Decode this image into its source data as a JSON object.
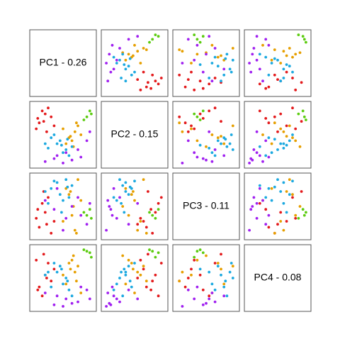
{
  "chart_data": {
    "type": "scatter_matrix",
    "labels": [
      "PC1 - 0.26",
      "PC2 - 0.15",
      "PC3 - 0.11",
      "PC4 - 0.08"
    ],
    "xlim": [
      -1,
      1
    ],
    "ylim": [
      -1,
      1
    ],
    "series": [
      {
        "color": "#e31a1c",
        "values": [
          [
            -0.6,
            0.7,
            -0.2,
            0.1
          ],
          [
            -0.8,
            0.4,
            -0.7,
            -0.3
          ],
          [
            -0.5,
            0.9,
            0.3,
            0.5
          ],
          [
            -0.9,
            0.2,
            -0.4,
            0.6
          ],
          [
            -0.4,
            0.6,
            -0.9,
            -0.1
          ],
          [
            -0.7,
            0.8,
            0.1,
            -0.6
          ],
          [
            -0.3,
            0.3,
            -0.5,
            0.3
          ],
          [
            -0.85,
            0.55,
            -0.1,
            -0.4
          ],
          [
            -0.55,
            0.1,
            -0.6,
            0.0
          ],
          [
            -0.65,
            0.45,
            0.5,
            0.8
          ]
        ]
      },
      {
        "color": "#5ccc10",
        "values": [
          [
            0.8,
            0.6,
            -0.3,
            0.9
          ],
          [
            0.9,
            0.8,
            -0.1,
            0.85
          ],
          [
            0.7,
            0.5,
            -0.2,
            0.95
          ],
          [
            0.95,
            0.7,
            -0.4,
            0.7
          ]
        ]
      },
      {
        "color": "#e69f00",
        "values": [
          [
            0.2,
            -0.1,
            0.4,
            0.5
          ],
          [
            0.4,
            0.1,
            -0.8,
            0.2
          ],
          [
            0.1,
            -0.3,
            0.6,
            -0.2
          ],
          [
            0.5,
            0.3,
            0.9,
            0.4
          ],
          [
            0.3,
            -0.2,
            -0.3,
            0.6
          ],
          [
            0.6,
            0.0,
            0.2,
            -0.5
          ],
          [
            0.0,
            0.2,
            -0.5,
            0.1
          ],
          [
            0.35,
            -0.4,
            0.0,
            0.75
          ],
          [
            0.45,
            0.4,
            -0.9,
            -0.1
          ],
          [
            0.25,
            -0.05,
            0.5,
            0.3
          ]
        ]
      },
      {
        "color": "#1ca9e0",
        "values": [
          [
            -0.2,
            -0.3,
            0.8,
            0.2
          ],
          [
            -0.4,
            -0.1,
            0.6,
            -0.3
          ],
          [
            0.1,
            -0.5,
            0.9,
            0.0
          ],
          [
            -0.1,
            -0.2,
            0.4,
            0.4
          ],
          [
            0.3,
            -0.4,
            0.7,
            -0.6
          ],
          [
            -0.6,
            -0.3,
            0.5,
            0.1
          ],
          [
            0.0,
            -0.6,
            0.2,
            -0.2
          ],
          [
            -0.3,
            0.0,
            0.85,
            0.5
          ],
          [
            0.2,
            -0.7,
            0.3,
            -0.4
          ],
          [
            -0.5,
            -0.45,
            0.1,
            0.2
          ],
          [
            0.15,
            -0.15,
            0.65,
            -0.1
          ],
          [
            -0.05,
            -0.35,
            -0.2,
            0.3
          ]
        ]
      },
      {
        "color": "#a020f0",
        "values": [
          [
            -0.3,
            -0.8,
            -0.1,
            -0.9
          ],
          [
            0.1,
            -0.6,
            -0.4,
            -0.7
          ],
          [
            0.5,
            -0.5,
            0.3,
            -0.8
          ],
          [
            -0.6,
            -0.9,
            0.2,
            -0.5
          ],
          [
            0.8,
            -0.2,
            -0.6,
            -0.4
          ],
          [
            0.0,
            -0.95,
            -0.8,
            -0.95
          ],
          [
            0.9,
            0.1,
            0.1,
            -0.7
          ],
          [
            -0.2,
            -0.7,
            0.6,
            -0.6
          ],
          [
            0.6,
            -0.75,
            -0.3,
            -0.3
          ],
          [
            0.3,
            -0.85,
            0.0,
            -0.85
          ]
        ]
      }
    ]
  }
}
